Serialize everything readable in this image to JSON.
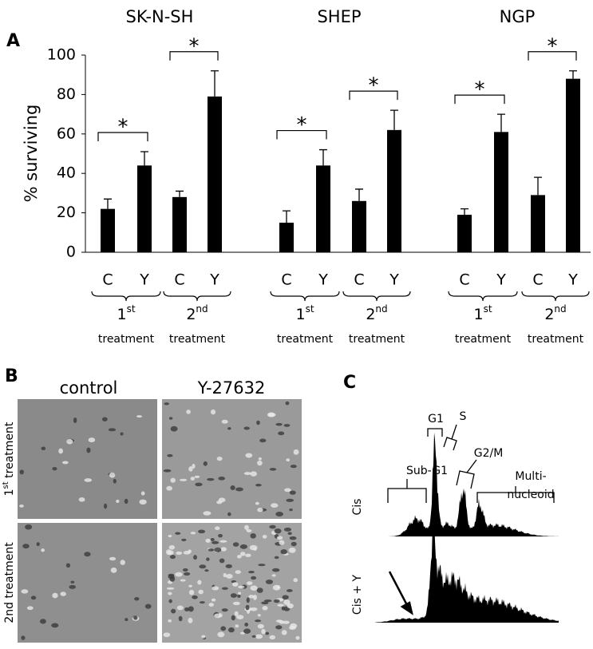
{
  "chart_data": {
    "type": "bar",
    "panel_label": "A",
    "ylabel": "% surviving",
    "groups": [
      "SK-N-SH",
      "SHEP",
      "NGP"
    ],
    "categories": [
      "C",
      "Y",
      "C",
      "Y",
      "C",
      "Y",
      "C",
      "Y",
      "C",
      "Y",
      "C",
      "Y"
    ],
    "values": [
      22,
      44,
      28,
      79,
      15,
      44,
      26,
      62,
      19,
      61,
      29,
      88
    ],
    "errors": [
      5,
      7,
      3,
      13,
      6,
      8,
      6,
      10,
      3,
      9,
      9,
      4
    ],
    "color": "#000000",
    "treatments": [
      {
        "number": "1",
        "suffix": "st",
        "word": "treatment",
        "significance": "*"
      },
      {
        "number": "2",
        "suffix": "nd",
        "word": "treatment",
        "significance": "*"
      },
      {
        "number": "1",
        "suffix": "st",
        "word": "treatment",
        "significance": "*"
      },
      {
        "number": "2",
        "suffix": "nd",
        "word": "treatment",
        "significance": "*"
      },
      {
        "number": "1",
        "suffix": "st",
        "word": "treatment",
        "significance": "*"
      },
      {
        "number": "2",
        "suffix": "nd",
        "word": "treatment",
        "significance": "*"
      }
    ],
    "ylim": [
      0,
      100
    ],
    "yticks": [
      0,
      20,
      40,
      60,
      80,
      100
    ]
  },
  "panel_b": {
    "label": "B",
    "columns": [
      "control",
      "Y-27632"
    ],
    "rows": [
      {
        "number": "1",
        "suffix": "st",
        "word": " treatment"
      },
      {
        "number": "2nd treatment"
      }
    ]
  },
  "panel_c": {
    "label": "C",
    "rows": [
      "Cis",
      "Cis + Y"
    ],
    "phases": {
      "g1": "G1",
      "s": "S",
      "sub_g1": "Sub-G1",
      "g2m": "G2/M",
      "multi": [
        "Multi-",
        "nucleoid"
      ]
    }
  }
}
